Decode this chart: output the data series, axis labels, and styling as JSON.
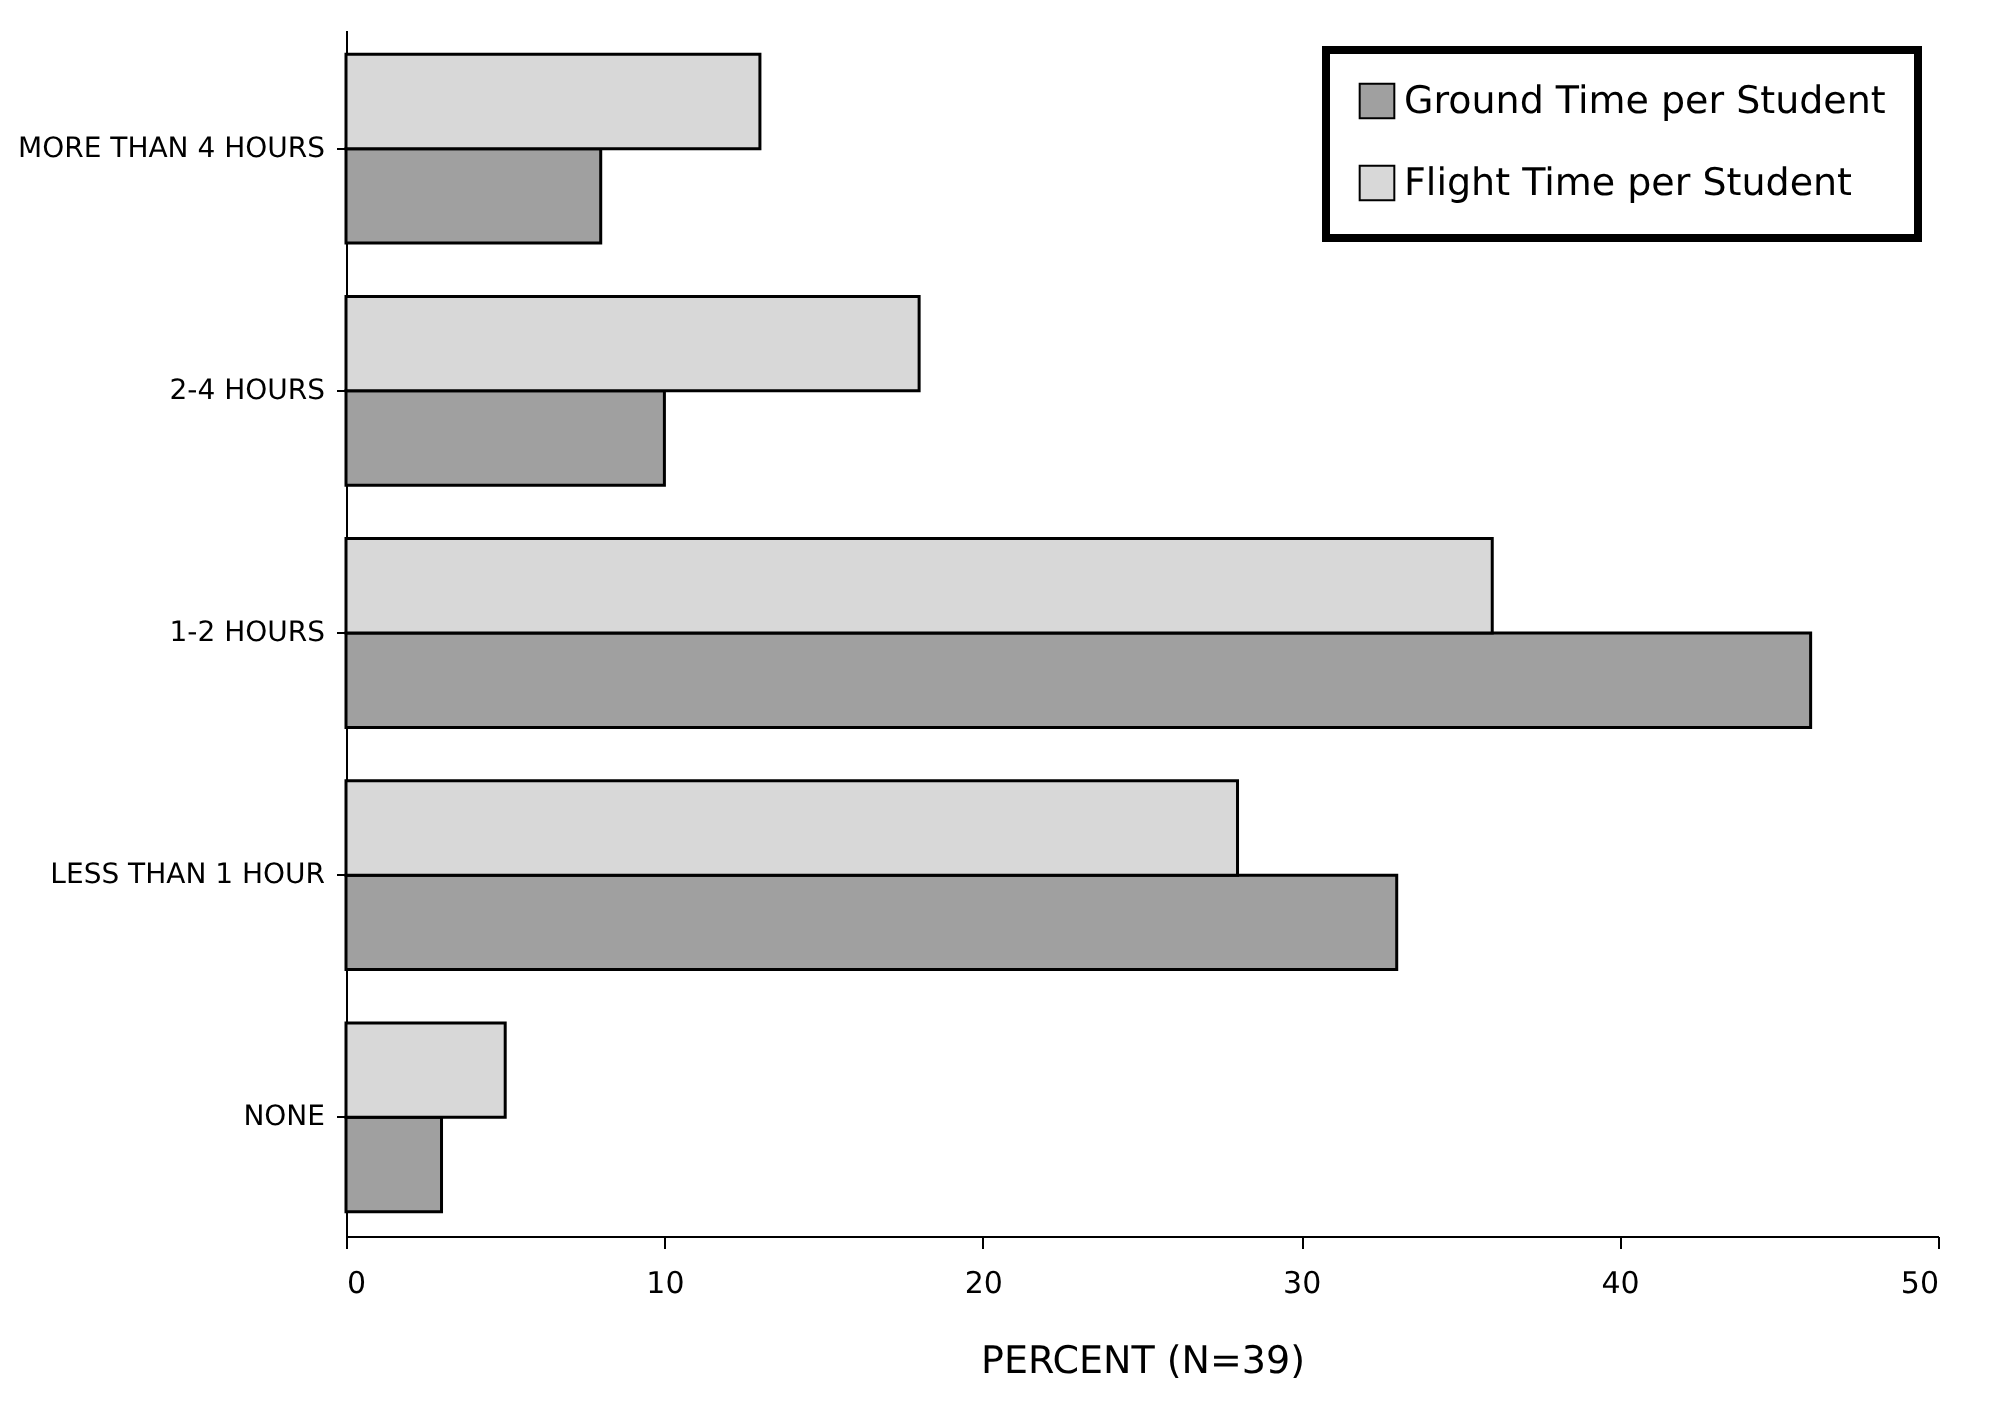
{
  "chart_data": {
    "type": "bar",
    "orientation": "horizontal",
    "xlabel": "PERCENT (N=39)",
    "categories": [
      "MORE THAN 4 HOURS",
      "2-4 HOURS",
      "1-2 HOURS",
      "LESS THAN 1 HOUR",
      "NONE"
    ],
    "series": [
      {
        "name": "Ground Time per Student",
        "color": "#a0a0a0",
        "values": [
          8,
          10,
          46,
          33,
          3
        ]
      },
      {
        "name": "Flight Time per Student",
        "color": "#d8d8d8",
        "values": [
          13,
          18,
          36,
          28,
          5
        ]
      }
    ],
    "xlim": [
      0,
      50
    ],
    "xticks": [
      0,
      10,
      20,
      30,
      40,
      50
    ],
    "grid": false,
    "legend": "top right"
  }
}
